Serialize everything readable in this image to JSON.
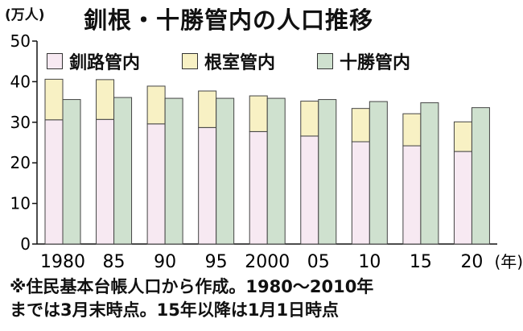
{
  "header": {
    "unit": "(万人)",
    "title": "釧根・十勝管内の人口推移"
  },
  "note": {
    "line1": "※住民基本台帳人口から作成。1980〜2010年",
    "line2": "までは3月末時点。15年以降は1月1日時点"
  },
  "chart_data": {
    "type": "bar",
    "title": "釧根・十勝管内の人口推移",
    "ylabel": "(万人)",
    "xlabel": "(年)",
    "ylim": [
      0,
      50
    ],
    "yticks": [
      0,
      10,
      20,
      30,
      40,
      50
    ],
    "grid": false,
    "legend_position": "top",
    "categories": [
      "1980",
      "85",
      "90",
      "95",
      "2000",
      "05",
      "10",
      "15",
      "20"
    ],
    "x_unit_label": "(年)",
    "series": [
      {
        "name": "釧路管内",
        "stack": "釧根",
        "color": "#f7e9f2",
        "values": [
          30.6,
          30.7,
          29.6,
          28.7,
          27.7,
          26.6,
          25.2,
          24.2,
          22.8
        ]
      },
      {
        "name": "根室管内",
        "stack": "釧根",
        "color": "#f8f1c4",
        "values": [
          10.0,
          9.8,
          9.3,
          9.0,
          8.8,
          8.6,
          8.2,
          7.9,
          7.3
        ]
      },
      {
        "name": "十勝管内",
        "stack": "十勝",
        "color": "#cfe1cf",
        "values": [
          35.6,
          36.1,
          35.9,
          35.9,
          35.9,
          35.6,
          35.1,
          34.8,
          33.6
        ]
      }
    ]
  }
}
